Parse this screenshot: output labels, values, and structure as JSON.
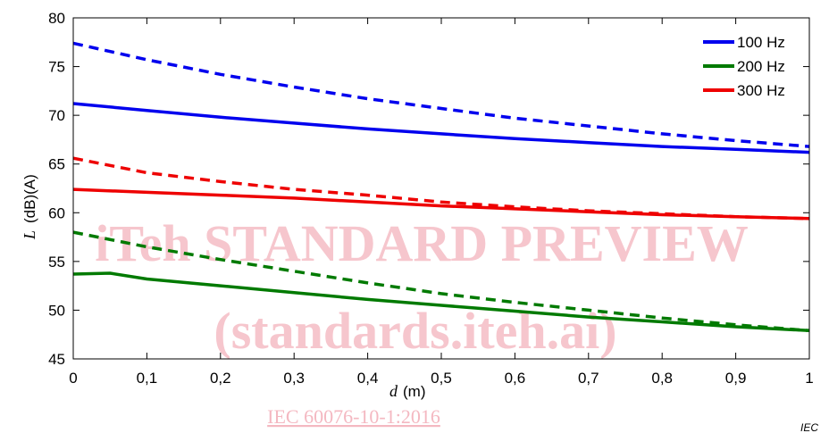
{
  "chart_data": {
    "type": "line",
    "xlabel_var": "d",
    "xlabel_unit": "(m)",
    "ylabel_var": "L",
    "ylabel_unit": "(dB)(A)",
    "xlim": [
      0,
      1
    ],
    "ylim": [
      45,
      80
    ],
    "x_ticks": [
      0,
      0.1,
      0.2,
      0.3,
      0.4,
      0.5,
      0.6,
      0.7,
      0.8,
      0.9,
      1
    ],
    "x_tick_labels": [
      "0",
      "0,1",
      "0,2",
      "0,3",
      "0,4",
      "0,5",
      "0,6",
      "0,7",
      "0,8",
      "0,9",
      "1"
    ],
    "y_ticks": [
      45,
      50,
      55,
      60,
      65,
      70,
      75,
      80
    ],
    "y_tick_labels": [
      "45",
      "50",
      "55",
      "60",
      "65",
      "70",
      "75",
      "80"
    ],
    "grid": false,
    "legend_position": "top-right",
    "legend": [
      {
        "name": "100 Hz",
        "color": "#0000ee"
      },
      {
        "name": "200 Hz",
        "color": "#007a00"
      },
      {
        "name": "300 Hz",
        "color": "#ee0000"
      }
    ],
    "series": [
      {
        "name": "100 Hz",
        "style": "solid",
        "color": "#0000ee",
        "x": [
          0,
          0.1,
          0.2,
          0.3,
          0.4,
          0.5,
          0.6,
          0.7,
          0.8,
          0.9,
          1
        ],
        "y": [
          71.2,
          70.5,
          69.8,
          69.2,
          68.6,
          68.1,
          67.6,
          67.2,
          66.8,
          66.5,
          66.2
        ]
      },
      {
        "name": "100 Hz",
        "style": "dashed",
        "color": "#0000ee",
        "x": [
          0,
          0.1,
          0.2,
          0.3,
          0.4,
          0.5,
          0.6,
          0.7,
          0.8,
          0.9,
          1
        ],
        "y": [
          77.4,
          75.7,
          74.2,
          72.9,
          71.7,
          70.7,
          69.7,
          68.9,
          68.1,
          67.4,
          66.8
        ]
      },
      {
        "name": "300 Hz",
        "style": "solid",
        "color": "#ee0000",
        "x": [
          0,
          0.1,
          0.2,
          0.3,
          0.4,
          0.5,
          0.6,
          0.7,
          0.8,
          0.9,
          1
        ],
        "y": [
          62.4,
          62.1,
          61.8,
          61.5,
          61.1,
          60.7,
          60.4,
          60.1,
          59.8,
          59.6,
          59.4
        ]
      },
      {
        "name": "300 Hz",
        "style": "dashed",
        "color": "#ee0000",
        "x": [
          0,
          0.1,
          0.2,
          0.3,
          0.4,
          0.5,
          0.6,
          0.7,
          0.8,
          0.9,
          1
        ],
        "y": [
          65.6,
          64.1,
          63.2,
          62.4,
          61.8,
          61.1,
          60.6,
          60.2,
          59.9,
          59.6,
          59.4
        ]
      },
      {
        "name": "200 Hz",
        "style": "solid",
        "color": "#007a00",
        "x": [
          0,
          0.05,
          0.1,
          0.2,
          0.3,
          0.4,
          0.5,
          0.6,
          0.7,
          0.8,
          0.9,
          1
        ],
        "y": [
          53.7,
          53.8,
          53.2,
          52.5,
          51.8,
          51.1,
          50.5,
          49.9,
          49.3,
          48.8,
          48.3,
          47.9
        ]
      },
      {
        "name": "200 Hz",
        "style": "dashed",
        "color": "#007a00",
        "x": [
          0,
          0.1,
          0.2,
          0.3,
          0.4,
          0.5,
          0.6,
          0.7,
          0.8,
          0.9,
          1
        ],
        "y": [
          58.0,
          56.5,
          55.2,
          54.0,
          52.8,
          51.7,
          50.8,
          50.0,
          49.2,
          48.5,
          47.9
        ]
      }
    ]
  },
  "watermark": {
    "line1": "iTeh STANDARD PREVIEW",
    "line2": "(standards.iteh.ai)",
    "line3": "IEC 60076-10-1:2016"
  },
  "figure_tag": "IEC"
}
